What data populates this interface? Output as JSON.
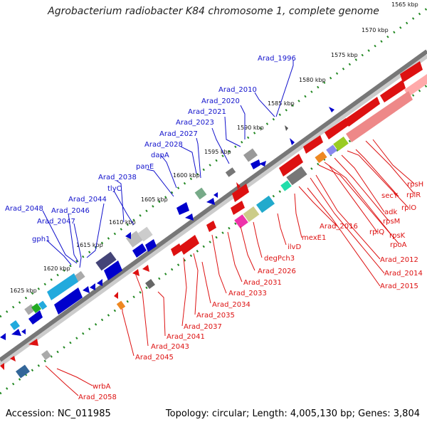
{
  "title": "Agrobacterium radiobacter K84 chromosome 1, complete genome",
  "footer": {
    "accession": "Accession: NC_011985",
    "summary": "Topology: circular; Length: 4,005,130 bp; Genes: 3,804"
  },
  "ticks": [
    "1565 kbp",
    "1570 kbp",
    "1575 kbp",
    "1580 kbp",
    "1585 kbp",
    "1590 kbp",
    "1595 kbp",
    "1600 kbp",
    "1605 kbp",
    "1610 kbp",
    "1615 kbp",
    "1620 kbp",
    "1625 kbp"
  ],
  "genes_top": [
    "Arad_1996",
    "Arad_2010",
    "Arad_2020",
    "Arad_2021",
    "Arad_2023",
    "Arad_2027",
    "Arad_2028",
    "dapA",
    "panE",
    "Arad_2038",
    "tlyC",
    "Arad_2044",
    "Arad_2048",
    "Arad_2046",
    "Arad_2047",
    "gph1"
  ],
  "genes_bottom": [
    "rpsH",
    "rplR",
    "secY",
    "rplO",
    "adk",
    "rpsM",
    "rplQ",
    "rpsK",
    "rpoA",
    "Arad_2012",
    "Arad_2014",
    "Arad_2015",
    "Arad_2016",
    "mexE1",
    "ilvD",
    "degPch3",
    "Arad_2026",
    "Arad_2031",
    "Arad_2033",
    "Arad_2034",
    "Arad_2035",
    "Arad_2037",
    "Arad_2041",
    "Arad_2043",
    "Arad_2045",
    "wrbA",
    "Arad_2058"
  ],
  "colors": {
    "top_labels": "#1111cc",
    "bottom_labels": "#dd1111",
    "backbone": "#777777",
    "ticks": "#228822"
  }
}
